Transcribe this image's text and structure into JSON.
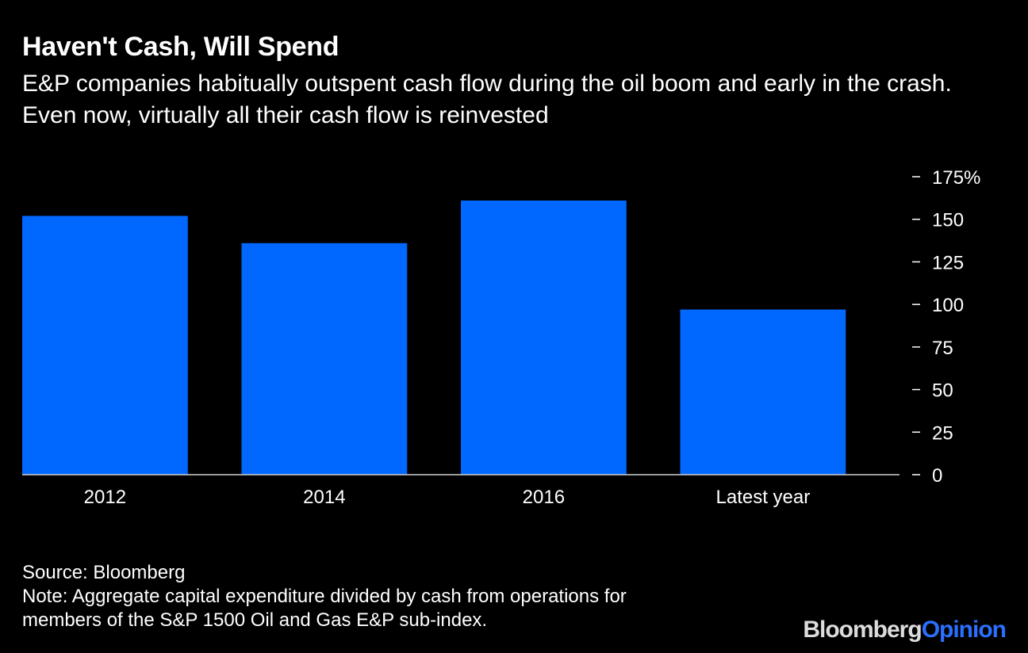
{
  "chart_data": {
    "type": "bar",
    "title": "Haven't Cash, Will Spend",
    "subtitle": "E&P companies habitually outspent cash flow during the oil boom and early in the crash. Even now, virtually all their cash flow is reinvested",
    "categories": [
      "2012",
      "2014",
      "2016",
      "Latest year"
    ],
    "values": [
      152,
      136,
      161,
      97
    ],
    "ylim": [
      0,
      175
    ],
    "yticks": [
      0,
      25,
      50,
      75,
      100,
      125,
      150,
      175
    ],
    "ytick_labels": [
      "0",
      "25",
      "50",
      "75",
      "100",
      "125",
      "150",
      "175%"
    ],
    "xlabel": "",
    "ylabel": "",
    "y_axis_side": "right",
    "grid": false,
    "bar_color": "#0068ff",
    "baseline_color": "#cfcfcf"
  },
  "footer": {
    "source": "Source: Bloomberg",
    "note_line1": "Note: Aggregate capital expenditure divided by cash from operations for",
    "note_line2": "members of the S&P 1500 Oil and Gas E&P sub-index."
  },
  "brand": {
    "part1": "Bloomberg",
    "part2": "Opinion"
  }
}
